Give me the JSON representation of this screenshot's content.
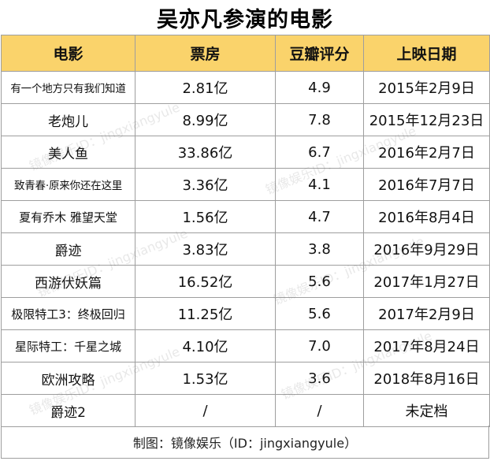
{
  "title": "吴亦凡参演的电影",
  "headers": [
    "电影",
    "票房",
    "豆瓣评分",
    "上映日期"
  ],
  "rows": [
    {
      "movie": "有一个地方只有我们知道",
      "box": "2.81亿",
      "score": "4.9",
      "date": "2015年2月9日"
    },
    {
      "movie": "老炮儿",
      "box": "8.99亿",
      "score": "7.8",
      "date": "2015年12月23日"
    },
    {
      "movie": "美人鱼",
      "box": "33.86亿",
      "score": "6.7",
      "date": "2016年2月7日"
    },
    {
      "movie": "致青春·原来你还在这里",
      "box": "3.36亿",
      "score": "4.1",
      "date": "2016年7月7日"
    },
    {
      "movie": "夏有乔木 雅望天堂",
      "box": "1.56亿",
      "score": "4.7",
      "date": "2016年8月4日"
    },
    {
      "movie": "爵迹",
      "box": "3.83亿",
      "score": "3.8",
      "date": "2016年9月29日"
    },
    {
      "movie": "西游伏妖篇",
      "box": "16.52亿",
      "score": "5.6",
      "date": "2017年1月27日"
    },
    {
      "movie": "极限特工3：终极回归",
      "box": "11.25亿",
      "score": "5.6",
      "date": "2017年2月9日"
    },
    {
      "movie": "星际特工：千星之城",
      "box": "4.10亿",
      "score": "7.0",
      "date": "2017年8月24日"
    },
    {
      "movie": "欧洲攻略",
      "box": "1.53亿",
      "score": "3.6",
      "date": "2018年8月16日"
    },
    {
      "movie": "爵迹2",
      "box": "/",
      "score": "/",
      "date": "未定档"
    }
  ],
  "footer": "制图：镜像娱乐（ID：jingxiangyule）",
  "watermark": "镜像娱乐ID：jingxiangyule"
}
